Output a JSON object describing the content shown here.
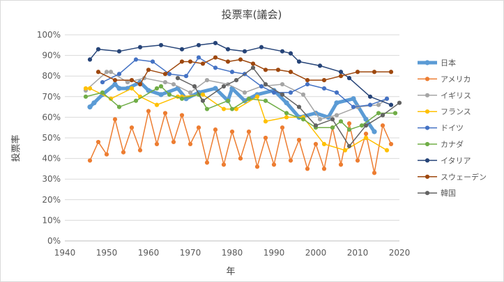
{
  "chart_data": {
    "type": "line",
    "title": "投票率(議会)",
    "xlabel": "年",
    "ylabel": "投票率",
    "xlim": [
      1940,
      2020
    ],
    "ylim": [
      0,
      100
    ],
    "x_ticks": [
      "1940",
      "1950",
      "1960",
      "1970",
      "1980",
      "1990",
      "2000",
      "2010",
      "2020"
    ],
    "y_ticks": [
      "0%",
      "10%",
      "20%",
      "30%",
      "40%",
      "50%",
      "60%",
      "70%",
      "80%",
      "90%",
      "100%"
    ],
    "legend_position": "right",
    "series": [
      {
        "name": "日本",
        "color": "#5b9bd5",
        "width": 5,
        "points": [
          [
            1946,
            65
          ],
          [
            1947,
            67
          ],
          [
            1949,
            71
          ],
          [
            1952,
            76
          ],
          [
            1953,
            74
          ],
          [
            1955,
            74
          ],
          [
            1958,
            77
          ],
          [
            1960,
            73
          ],
          [
            1963,
            71
          ],
          [
            1967,
            74
          ],
          [
            1969,
            69
          ],
          [
            1972,
            72
          ],
          [
            1976,
            74
          ],
          [
            1979,
            68
          ],
          [
            1980,
            74
          ],
          [
            1983,
            68
          ],
          [
            1986,
            71
          ],
          [
            1990,
            73
          ],
          [
            1993,
            67
          ],
          [
            1996,
            60
          ],
          [
            2000,
            62
          ],
          [
            2003,
            60
          ],
          [
            2005,
            67
          ],
          [
            2009,
            69
          ],
          [
            2012,
            59
          ],
          [
            2014,
            53
          ]
        ]
      },
      {
        "name": "アメリカ",
        "color": "#ed7d31",
        "width": 1.5,
        "points": [
          [
            1946,
            39
          ],
          [
            1948,
            48
          ],
          [
            1950,
            42
          ],
          [
            1952,
            59
          ],
          [
            1954,
            43
          ],
          [
            1956,
            55
          ],
          [
            1958,
            44
          ],
          [
            1960,
            63
          ],
          [
            1962,
            47
          ],
          [
            1964,
            62
          ],
          [
            1966,
            48
          ],
          [
            1968,
            61
          ],
          [
            1970,
            47
          ],
          [
            1972,
            55
          ],
          [
            1974,
            38
          ],
          [
            1976,
            54
          ],
          [
            1978,
            37
          ],
          [
            1980,
            53
          ],
          [
            1982,
            40
          ],
          [
            1984,
            53
          ],
          [
            1986,
            36
          ],
          [
            1988,
            50
          ],
          [
            1990,
            37
          ],
          [
            1992,
            55
          ],
          [
            1994,
            39
          ],
          [
            1996,
            49
          ],
          [
            1998,
            35
          ],
          [
            2000,
            47
          ],
          [
            2002,
            35
          ],
          [
            2004,
            55
          ],
          [
            2006,
            37
          ],
          [
            2008,
            57
          ],
          [
            2010,
            39
          ],
          [
            2012,
            52
          ],
          [
            2014,
            33
          ],
          [
            2016,
            56
          ],
          [
            2018,
            47
          ]
        ]
      },
      {
        "name": "イギリス",
        "color": "#a5a5a5",
        "width": 1.5,
        "points": [
          [
            1945,
            73
          ],
          [
            1950,
            82
          ],
          [
            1951,
            82
          ],
          [
            1955,
            77
          ],
          [
            1959,
            79
          ],
          [
            1964,
            77
          ],
          [
            1966,
            76
          ],
          [
            1970,
            72
          ],
          [
            1974,
            78
          ],
          [
            1979,
            76
          ],
          [
            1983,
            72
          ],
          [
            1987,
            75
          ],
          [
            1992,
            76
          ],
          [
            1997,
            71
          ],
          [
            2001,
            59
          ],
          [
            2005,
            61
          ],
          [
            2010,
            65
          ],
          [
            2015,
            66
          ],
          [
            2017,
            69
          ]
        ]
      },
      {
        "name": "フランス",
        "color": "#ffc000",
        "width": 1.5,
        "points": [
          [
            1945,
            74
          ],
          [
            1946,
            74
          ],
          [
            1951,
            69
          ],
          [
            1956,
            74
          ],
          [
            1958,
            70
          ],
          [
            1962,
            66
          ],
          [
            1967,
            70
          ],
          [
            1968,
            70
          ],
          [
            1973,
            71
          ],
          [
            1978,
            64
          ],
          [
            1981,
            64
          ],
          [
            1986,
            70
          ],
          [
            1988,
            58
          ],
          [
            1993,
            60
          ],
          [
            1997,
            60
          ],
          [
            2002,
            47
          ],
          [
            2007,
            44
          ],
          [
            2012,
            50
          ],
          [
            2017,
            44
          ]
        ]
      },
      {
        "name": "ドイツ",
        "color": "#4472c4",
        "width": 1.5,
        "points": [
          [
            1949,
            77
          ],
          [
            1953,
            81
          ],
          [
            1957,
            88
          ],
          [
            1961,
            87
          ],
          [
            1965,
            81
          ],
          [
            1969,
            80
          ],
          [
            1972,
            89
          ],
          [
            1976,
            84
          ],
          [
            1980,
            82
          ],
          [
            1983,
            81
          ],
          [
            1987,
            75
          ],
          [
            1990,
            72
          ],
          [
            1994,
            72
          ],
          [
            1998,
            76
          ],
          [
            2002,
            74
          ],
          [
            2005,
            72
          ],
          [
            2009,
            65
          ],
          [
            2013,
            66
          ],
          [
            2017,
            69
          ]
        ]
      },
      {
        "name": "カナダ",
        "color": "#70ad47",
        "width": 1.5,
        "points": [
          [
            1945,
            70
          ],
          [
            1949,
            72
          ],
          [
            1953,
            65
          ],
          [
            1957,
            68
          ],
          [
            1962,
            74
          ],
          [
            1963,
            75
          ],
          [
            1965,
            71
          ],
          [
            1968,
            69
          ],
          [
            1972,
            71
          ],
          [
            1974,
            64
          ],
          [
            1979,
            68
          ],
          [
            1980,
            64
          ],
          [
            1984,
            69
          ],
          [
            1988,
            68
          ],
          [
            1993,
            62
          ],
          [
            1997,
            59
          ],
          [
            2000,
            55
          ],
          [
            2004,
            55
          ],
          [
            2006,
            58
          ],
          [
            2008,
            54
          ],
          [
            2011,
            56
          ],
          [
            2015,
            62
          ],
          [
            2019,
            62
          ]
        ]
      },
      {
        "name": "イタリア",
        "color": "#264478",
        "width": 1.5,
        "points": [
          [
            1946,
            88
          ],
          [
            1948,
            93
          ],
          [
            1953,
            92
          ],
          [
            1958,
            94
          ],
          [
            1963,
            95
          ],
          [
            1968,
            93
          ],
          [
            1972,
            95
          ],
          [
            1976,
            96
          ],
          [
            1979,
            93
          ],
          [
            1983,
            92
          ],
          [
            1987,
            94
          ],
          [
            1992,
            92
          ],
          [
            1994,
            91
          ],
          [
            1996,
            87
          ],
          [
            2001,
            85
          ],
          [
            2006,
            82
          ],
          [
            2008,
            79
          ],
          [
            2013,
            70
          ],
          [
            2018,
            66
          ]
        ]
      },
      {
        "name": "スウェーデン",
        "color": "#9e480e",
        "width": 1.5,
        "points": [
          [
            1948,
            82
          ],
          [
            1952,
            78
          ],
          [
            1956,
            78
          ],
          [
            1958,
            76
          ],
          [
            1960,
            83
          ],
          [
            1964,
            81
          ],
          [
            1968,
            87
          ],
          [
            1970,
            87
          ],
          [
            1973,
            86
          ],
          [
            1976,
            89
          ],
          [
            1979,
            87
          ],
          [
            1982,
            88
          ],
          [
            1985,
            86
          ],
          [
            1988,
            83
          ],
          [
            1991,
            83
          ],
          [
            1994,
            82
          ],
          [
            1998,
            78
          ],
          [
            2002,
            78
          ],
          [
            2006,
            80
          ],
          [
            2010,
            82
          ],
          [
            2014,
            82
          ],
          [
            2018,
            82
          ]
        ]
      },
      {
        "name": "韓国",
        "color": "#636363",
        "width": 1.5,
        "points": [
          [
            1967,
            79
          ],
          [
            1971,
            75
          ],
          [
            1973,
            68
          ],
          [
            1978,
            75
          ],
          [
            1981,
            78
          ],
          [
            1985,
            84
          ],
          [
            1988,
            76
          ],
          [
            1992,
            71
          ],
          [
            1996,
            65
          ],
          [
            2000,
            56
          ],
          [
            2004,
            59
          ],
          [
            2008,
            46
          ],
          [
            2012,
            56
          ],
          [
            2016,
            61
          ],
          [
            2020,
            67
          ]
        ]
      }
    ]
  }
}
